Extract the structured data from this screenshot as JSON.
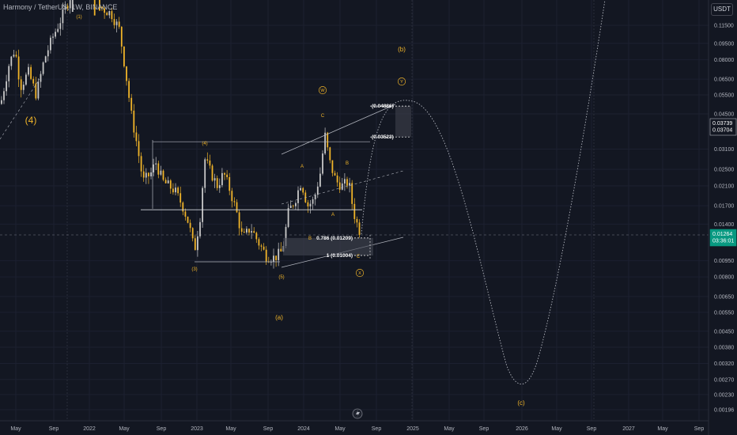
{
  "header": {
    "symbol_title": "Harmony / TetherUS, 1W, BINANCE",
    "currency_button": "USDT"
  },
  "chart_data": {
    "type": "candlestick",
    "title": "Harmony / TetherUS, 1W, BINANCE",
    "y_scale": "log",
    "ylim": [
      0.0018,
      0.14
    ],
    "y_ticks": [
      "0.11500",
      "0.09500",
      "0.08000",
      "0.06500",
      "0.05500",
      "0.04500",
      "0.03100",
      "0.02500",
      "0.02100",
      "0.01700",
      "0.01400",
      "0.00950",
      "0.00800",
      "0.00650",
      "0.00550",
      "0.00450",
      "0.00380",
      "0.00320",
      "0.00270",
      "0.00230",
      "0.00196"
    ],
    "x_ticks": [
      "May",
      "Sep",
      "2022",
      "May",
      "Sep",
      "2023",
      "May",
      "Sep",
      "2024",
      "May",
      "Sep",
      "2025",
      "May",
      "Sep",
      "2026",
      "May",
      "Sep",
      "2027",
      "May",
      "Sep"
    ],
    "price_labels": {
      "boxA_upper": "0.03739",
      "boxA_lower": "0.03704",
      "current_price": "0.01264",
      "countdown": "03:36:01"
    },
    "fib_levels": [
      {
        "label": "(0.04886)",
        "value": 0.04886
      },
      {
        "label": "(0.03523)",
        "value": 0.03523
      },
      {
        "label": "0.786 (0.01209)",
        "value": 0.01209
      },
      {
        "label": "1 (0.01004)",
        "value": 0.01004
      }
    ],
    "horizontal_levels": [
      0.0335,
      0.0163,
      0.0093
    ],
    "wave_labels": [
      "(4)",
      "(1)",
      "(4)",
      "(3)",
      "(5)",
      "(a)",
      "(b)",
      "(c)",
      "W",
      "X",
      "Y",
      "A",
      "B",
      "C",
      "A",
      "B",
      "C"
    ],
    "colors": {
      "up": "#c8c8c8",
      "down": "#f0b429",
      "background": "#131722",
      "price_badge": "#089981",
      "wave_label": "#f0b429"
    }
  }
}
